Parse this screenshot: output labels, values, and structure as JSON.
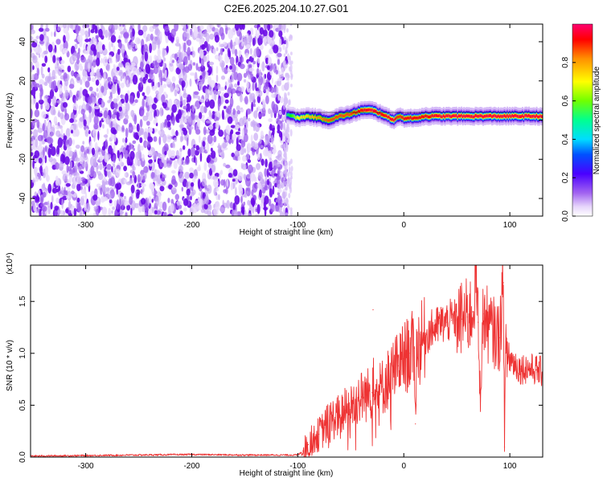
{
  "chart_data": [
    {
      "type": "heatmap",
      "title": "C2E6.2025.204.10.27.G01",
      "xlabel": "Height of straight line (km)",
      "ylabel": "Frequency (Hz)",
      "xlim": [
        -352,
        131
      ],
      "ylim": [
        -49,
        49
      ],
      "xticks": [
        -300,
        -200,
        -100,
        0,
        100
      ],
      "yticks": [
        -40,
        -20,
        0,
        20,
        40
      ],
      "grid": false,
      "colorbar": {
        "label": "Normalized spectral amplitude",
        "range": [
          0,
          1
        ],
        "ticks": [
          "0.0",
          "0.2",
          "0.4",
          "0.6",
          "0.8"
        ],
        "colormap": [
          "#ffffff",
          "#c9a6f5",
          "#8a3dec",
          "#5a00dc",
          "#0000ff",
          "#00ffff",
          "#00ff00",
          "#ffff00",
          "#ff9900",
          "#ff0000",
          "#ff0066"
        ]
      },
      "noise_region_x": [
        -352,
        -110
      ],
      "ridge": {
        "x": [
          -110,
          -100,
          -90,
          -80,
          -70,
          -60,
          -50,
          -40,
          -30,
          -20,
          -10,
          -5,
          0,
          10,
          20,
          40,
          60,
          80,
          90,
          100,
          131
        ],
        "freq": [
          3,
          1,
          2,
          1,
          0,
          2,
          3,
          5,
          5,
          3,
          0,
          2,
          1,
          1,
          2,
          2,
          2,
          2,
          2,
          2,
          2
        ],
        "amplitude": [
          0.55,
          0.7,
          0.75,
          0.8,
          0.85,
          0.85,
          0.85,
          0.9,
          0.95,
          0.9,
          0.95,
          0.85,
          0.9,
          0.9,
          0.9,
          0.95,
          0.95,
          0.95,
          0.95,
          0.95,
          0.95
        ]
      }
    },
    {
      "type": "line",
      "xlabel": "Height of straight line (km)",
      "ylabel": "SNR (10 * v/v)",
      "y_multiplier": "(x10⁴)",
      "xlim": [
        -352,
        131
      ],
      "ylim": [
        0,
        1.85
      ],
      "xticks": [
        -300,
        -200,
        -100,
        0,
        100
      ],
      "yticks": [
        "0.0",
        "0.5",
        "1.0",
        "1.5"
      ],
      "yticks_values": [
        0,
        0.5,
        1.0,
        1.5
      ],
      "grid": false,
      "color": "#ee3333",
      "series": [
        {
          "x": [
            -352,
            -300,
            -250,
            -200,
            -150,
            -100,
            -95,
            -90,
            -85,
            -80,
            -75,
            -70,
            -65,
            -60,
            -55,
            -50,
            -45,
            -40,
            -35,
            -30,
            -29,
            -28,
            -25,
            -20,
            -15,
            -10,
            -5,
            0,
            5,
            10,
            11,
            12,
            15,
            20,
            25,
            30,
            35,
            40,
            45,
            50,
            55,
            60,
            65,
            68,
            70,
            72,
            75,
            80,
            85,
            90,
            94,
            95,
            96,
            100,
            105,
            110,
            115,
            120,
            125,
            131
          ],
          "y": [
            0.01,
            0.015,
            0.02,
            0.025,
            0.02,
            0.02,
            0.06,
            0.12,
            0.18,
            0.22,
            0.28,
            0.35,
            0.38,
            0.4,
            0.45,
            0.48,
            0.55,
            0.58,
            0.6,
            0.62,
            1.42,
            0.6,
            0.62,
            0.68,
            0.75,
            0.82,
            0.88,
            0.95,
            1.0,
            1.05,
            0.32,
            1.05,
            1.08,
            1.15,
            1.22,
            1.25,
            1.28,
            1.3,
            1.32,
            1.32,
            1.33,
            1.35,
            1.4,
            1.83,
            1.3,
            0.6,
            1.38,
            1.25,
            1.2,
            1.15,
            1.68,
            0.1,
            1.0,
            0.95,
            0.9,
            0.85,
            0.86,
            0.85,
            0.84,
            0.82
          ]
        }
      ]
    }
  ]
}
